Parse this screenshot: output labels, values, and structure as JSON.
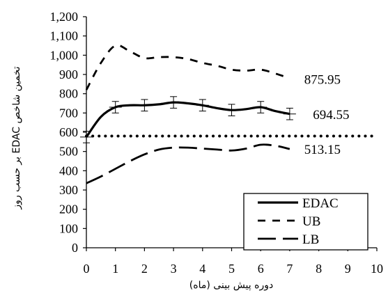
{
  "chart_data": {
    "type": "line",
    "xlabel": "دوره پیش بینی (ماه)",
    "ylabel": "تخمین شاخص EDAC بر حسب روز",
    "xlim": [
      0,
      10
    ],
    "ylim": [
      0,
      1200
    ],
    "x_ticks": [
      "0",
      "1",
      "2",
      "3",
      "4",
      "5",
      "6",
      "7",
      "8",
      "9",
      "10"
    ],
    "y_ticks": [
      "0",
      "100",
      "200",
      "300",
      "400",
      "500",
      "600",
      "700",
      "800",
      "900",
      "1,000",
      "1,100",
      "1,200"
    ],
    "grid": false,
    "legend_position": "bottom-right",
    "series": [
      {
        "name": "EDAC",
        "style": "solid",
        "x": [
          0,
          0.5,
          1,
          1.5,
          2,
          2.5,
          3,
          3.5,
          4,
          4.5,
          5,
          5.5,
          6,
          6.5,
          7
        ],
        "y": [
          575,
          680,
          730,
          740,
          740,
          745,
          755,
          750,
          740,
          725,
          715,
          720,
          730,
          710,
          695
        ],
        "error_x": [
          0,
          1,
          2,
          3,
          4,
          5,
          6,
          7
        ],
        "error_y": [
          575,
          730,
          740,
          755,
          740,
          715,
          730,
          695
        ],
        "error": 30
      },
      {
        "name": "UB",
        "style": "dashed",
        "x": [
          0,
          0.5,
          1,
          1.5,
          2,
          2.5,
          3,
          3.5,
          4,
          4.5,
          5,
          5.5,
          6,
          6.5,
          7
        ],
        "y": [
          820,
          960,
          1050,
          1020,
          985,
          990,
          990,
          980,
          960,
          945,
          925,
          920,
          925,
          905,
          880
        ]
      },
      {
        "name": "LB",
        "style": "long-dashed",
        "x": [
          0,
          0.5,
          1,
          1.5,
          2,
          2.5,
          3,
          3.5,
          4,
          4.5,
          5,
          5.5,
          6,
          6.5,
          7
        ],
        "y": [
          335,
          370,
          410,
          450,
          485,
          510,
          520,
          520,
          515,
          510,
          505,
          515,
          535,
          530,
          513
        ]
      }
    ],
    "reference_line": {
      "y": 580,
      "style": "dotted"
    },
    "annotations": [
      {
        "text": "875.95",
        "x": 7.5,
        "y": 875.95
      },
      {
        "text": "694.55",
        "x": 7.8,
        "y": 694.55
      },
      {
        "text": "513.15",
        "x": 7.5,
        "y": 513.15
      }
    ]
  }
}
